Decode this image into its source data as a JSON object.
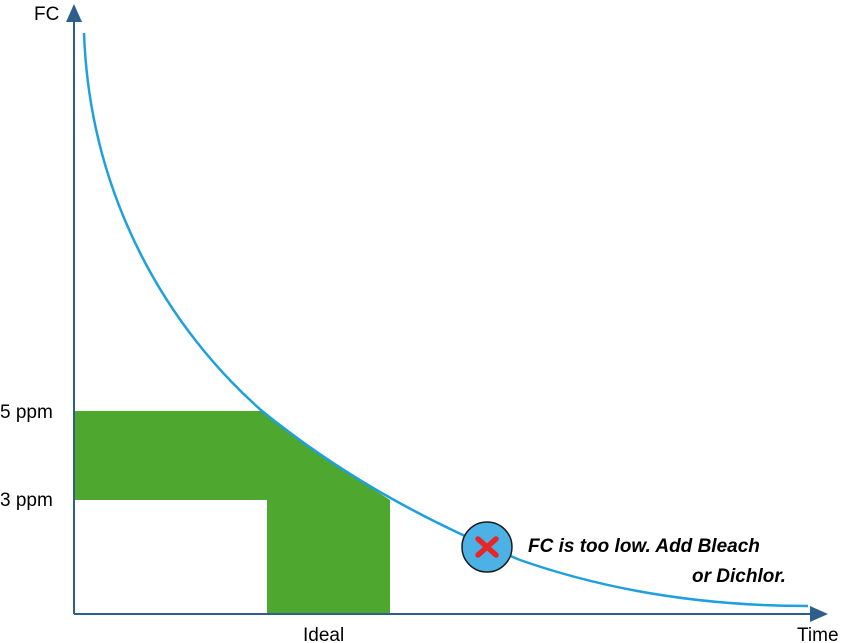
{
  "chart_data": {
    "type": "line",
    "title": "",
    "xlabel": "Time",
    "ylabel": "FC",
    "y_ticks": [
      "5 ppm",
      "3 ppm"
    ],
    "x_ticks": [
      "Ideal"
    ],
    "series": [
      {
        "values": [
          9.0,
          7.2,
          5.9,
          5.0,
          4.2,
          3.6,
          3.0,
          2.5,
          2.0,
          1.5,
          1.1,
          0.8,
          0.5,
          0.3,
          0.2
        ],
        "x": [
          0.1,
          0.4,
          0.8,
          1.3,
          2.1,
          3.0,
          4.0,
          4.6,
          5.4,
          6.3,
          7.2,
          8.1,
          9.0,
          9.8,
          10.5
        ]
      }
    ],
    "ideal_band": {
      "fc_min": 3,
      "fc_max": 5
    },
    "annotation": {
      "line1": "FC is too low. Add Bleach",
      "line2": "or Dichlor.",
      "icon": "red-x-icon"
    },
    "colors": {
      "curve": "#1fa0de",
      "ideal_fill": "#4ea72e",
      "axis": "#2e5f8a",
      "marker_fill": "#4cb2e6",
      "marker_x": "#e8262a"
    }
  }
}
